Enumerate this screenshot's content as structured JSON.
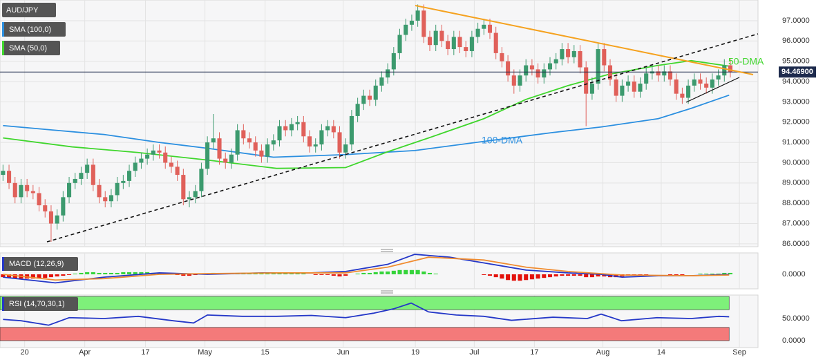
{
  "chart_data": [
    {
      "type": "candlestick",
      "title": "AUD/JPY",
      "up_color": "#3c9a6e",
      "down_color": "#e0605a",
      "open": [
        89.4,
        89.6,
        89.0,
        88.3,
        88.9,
        88.6,
        88.5,
        87.9,
        87.6,
        87.0,
        87.4,
        88.3,
        89.0,
        89.2,
        89.5,
        89.9,
        88.9,
        88.3,
        88.1,
        88.4,
        89.0,
        89.1,
        89.6,
        90.0,
        90.2,
        90.4,
        90.6,
        90.5,
        90.0,
        89.8,
        89.4,
        88.2,
        88.3,
        88.6,
        89.7,
        91.0,
        91.2,
        90.2,
        90.0,
        90.4,
        91.6,
        91.2,
        91.0,
        90.6,
        90.3,
        90.9,
        91.1,
        91.8,
        91.6,
        91.9,
        92.0,
        91.3,
        90.8,
        90.9,
        91.6,
        91.8,
        91.5,
        90.5,
        90.9,
        92.3,
        92.9,
        93.3,
        93.1,
        93.8,
        94.2,
        94.6,
        95.4,
        96.3,
        96.8,
        97.0,
        97.5,
        96.2,
        95.8,
        96.5,
        96.0,
        95.6,
        96.2,
        95.7,
        95.5,
        96.2,
        96.6,
        96.8,
        96.4,
        95.4,
        95.0,
        94.3,
        93.8,
        94.3,
        94.8,
        94.6,
        94.2,
        94.6,
        94.9,
        95.1,
        95.6,
        95.2,
        95.5,
        94.7,
        93.4,
        93.9,
        95.6,
        94.8,
        94.1,
        93.3,
        93.8,
        94.0,
        93.5,
        93.9,
        94.4,
        94.5,
        94.3,
        94.5,
        94.1,
        93.4,
        93.2,
        93.8,
        94.1,
        93.9,
        93.7,
        94.1,
        94.3,
        94.8
      ],
      "high": [
        89.9,
        89.9,
        89.3,
        89.2,
        89.2,
        88.9,
        88.8,
        88.2,
        87.9,
        87.7,
        88.6,
        89.3,
        89.5,
        89.8,
        90.2,
        90.2,
        89.2,
        88.6,
        88.7,
        89.3,
        89.4,
        89.9,
        90.3,
        90.5,
        90.7,
        90.9,
        90.9,
        90.8,
        90.3,
        90.1,
        89.7,
        88.6,
        88.9,
        90.0,
        91.3,
        92.4,
        91.5,
        90.5,
        90.7,
        91.9,
        91.9,
        91.5,
        91.3,
        90.9,
        91.2,
        91.4,
        92.1,
        92.1,
        92.2,
        92.3,
        92.3,
        91.6,
        91.2,
        91.9,
        92.1,
        92.1,
        91.8,
        91.2,
        92.6,
        93.2,
        93.6,
        93.6,
        94.1,
        94.5,
        94.9,
        95.7,
        96.6,
        97.1,
        97.3,
        97.8,
        97.8,
        96.5,
        96.8,
        96.8,
        96.3,
        96.5,
        96.5,
        96.0,
        96.5,
        96.9,
        97.1,
        97.1,
        96.7,
        95.7,
        95.3,
        94.6,
        94.6,
        95.1,
        95.1,
        94.9,
        94.9,
        95.2,
        95.4,
        95.9,
        95.9,
        95.8,
        95.8,
        95.0,
        94.2,
        95.9,
        95.9,
        95.1,
        94.4,
        94.1,
        94.3,
        94.3,
        94.2,
        94.7,
        94.8,
        94.8,
        94.8,
        94.8,
        94.4,
        93.7,
        94.1,
        94.4,
        94.4,
        94.2,
        94.4,
        94.6,
        95.1,
        95.1
      ],
      "low": [
        89.1,
        88.7,
        88.0,
        88.0,
        88.3,
        88.2,
        87.6,
        87.3,
        86.1,
        86.7,
        87.1,
        88.0,
        88.7,
        88.9,
        89.2,
        88.6,
        88.0,
        87.8,
        87.8,
        88.1,
        88.7,
        88.8,
        89.3,
        89.7,
        89.9,
        90.1,
        90.2,
        89.7,
        89.5,
        89.1,
        87.9,
        87.8,
        88.0,
        88.3,
        89.4,
        90.7,
        89.9,
        89.7,
        89.7,
        90.1,
        90.9,
        90.7,
        90.3,
        90.0,
        90.0,
        90.6,
        90.8,
        91.3,
        91.3,
        91.6,
        91.0,
        90.5,
        90.5,
        90.6,
        91.3,
        91.2,
        90.2,
        90.2,
        90.6,
        92.0,
        92.6,
        92.8,
        92.8,
        93.5,
        93.9,
        94.3,
        95.1,
        96.0,
        96.5,
        96.7,
        95.9,
        95.5,
        95.5,
        95.7,
        95.3,
        95.3,
        95.4,
        95.2,
        95.2,
        95.9,
        96.3,
        96.1,
        95.1,
        94.7,
        94.0,
        93.4,
        93.5,
        94.0,
        94.3,
        93.9,
        93.9,
        94.3,
        94.6,
        94.8,
        94.9,
        94.9,
        94.4,
        91.8,
        93.1,
        93.6,
        94.5,
        93.8,
        93.0,
        93.0,
        93.5,
        93.2,
        93.2,
        93.6,
        94.1,
        94.0,
        94.0,
        93.8,
        93.1,
        92.9,
        92.9,
        93.5,
        93.6,
        93.4,
        93.4,
        93.8,
        94.0,
        94.2
      ],
      "close": [
        89.6,
        89.0,
        88.3,
        88.9,
        88.6,
        88.5,
        87.9,
        87.6,
        87.0,
        87.4,
        88.3,
        89.0,
        89.2,
        89.5,
        89.9,
        88.9,
        88.3,
        88.1,
        88.4,
        89.0,
        89.1,
        89.6,
        90.0,
        90.2,
        90.4,
        90.6,
        90.5,
        90.0,
        89.8,
        89.4,
        88.2,
        88.3,
        88.6,
        89.7,
        91.0,
        91.2,
        90.2,
        90.0,
        90.4,
        91.6,
        91.2,
        91.0,
        90.6,
        90.3,
        90.9,
        91.1,
        91.8,
        91.6,
        91.9,
        92.0,
        91.3,
        90.8,
        90.9,
        91.6,
        91.8,
        91.5,
        90.5,
        90.9,
        92.3,
        92.9,
        93.3,
        93.1,
        93.8,
        94.2,
        94.6,
        95.4,
        96.3,
        96.8,
        97.0,
        97.5,
        96.2,
        95.8,
        96.5,
        96.0,
        95.6,
        96.2,
        95.7,
        95.5,
        96.2,
        96.6,
        96.8,
        96.4,
        95.4,
        95.0,
        94.3,
        93.8,
        94.3,
        94.8,
        94.6,
        94.2,
        94.6,
        94.9,
        95.1,
        95.6,
        95.2,
        95.5,
        94.7,
        93.4,
        93.9,
        95.6,
        94.8,
        94.1,
        93.3,
        93.8,
        94.0,
        93.5,
        93.9,
        94.4,
        94.5,
        94.3,
        94.5,
        94.1,
        93.4,
        93.2,
        93.8,
        94.1,
        93.9,
        93.7,
        94.1,
        94.3,
        94.8,
        94.469
      ],
      "price_line": 94.469,
      "price_label": "94.46900",
      "price_color": "#1e2b4d",
      "overlays": [
        {
          "name": "SMA (100,0)",
          "label": "100-DMA",
          "color": "#2b8fe0",
          "x": [
            0,
            8.7,
            16.8,
            26,
            34,
            45,
            57,
            68.5,
            80,
            91.5,
            99.5,
            109,
            114.5,
            120.8
          ],
          "values": [
            91.83,
            91.6,
            91.39,
            91.0,
            90.71,
            90.27,
            90.4,
            90.6,
            91.05,
            91.49,
            91.76,
            92.17,
            92.68,
            93.33
          ]
        },
        {
          "name": "SMA (50,0)",
          "label": "50-DMA",
          "color": "#3fd62c",
          "x": [
            0,
            11.5,
            22.5,
            34,
            45.5,
            57,
            64,
            70.8,
            80,
            87,
            94,
            100.7,
            108.8,
            114.5,
            120.8
          ],
          "values": [
            91.22,
            90.78,
            90.5,
            90.13,
            89.72,
            89.76,
            90.54,
            91.22,
            92.17,
            93.12,
            93.8,
            94.35,
            94.79,
            95.03,
            94.76
          ]
        }
      ],
      "xlim": [
        -0.5,
        125.6
      ],
      "ylim": [
        85.86,
        98.02
      ],
      "grid": true,
      "yticks": [
        {
          "value": 97,
          "label": "97.0000"
        },
        {
          "value": 96,
          "label": "96.0000"
        },
        {
          "value": 95,
          "label": "95.0000"
        },
        {
          "value": 94,
          "label": "94.0000"
        },
        {
          "value": 93,
          "label": "93.0000"
        },
        {
          "value": 92,
          "label": "92.0000"
        },
        {
          "value": 91,
          "label": "91.0000"
        },
        {
          "value": 90,
          "label": "90.0000"
        },
        {
          "value": 89,
          "label": "89.0000"
        },
        {
          "value": 88,
          "label": "88.0000"
        },
        {
          "value": 87,
          "label": "87.0000"
        },
        {
          "value": 86,
          "label": "86.0000"
        }
      ],
      "xticks": [
        {
          "value": 3.6,
          "label": "20"
        },
        {
          "value": 13.6,
          "label": "Apr"
        },
        {
          "value": 23.7,
          "label": "17"
        },
        {
          "value": 33.6,
          "label": "May"
        },
        {
          "value": 43.6,
          "label": "15"
        },
        {
          "value": 56.6,
          "label": "Jun"
        },
        {
          "value": 68.6,
          "label": "19"
        },
        {
          "value": 78.4,
          "label": "Jul"
        },
        {
          "value": 88.4,
          "label": "17"
        },
        {
          "value": 99.8,
          "label": "Aug"
        },
        {
          "value": 109.5,
          "label": "14"
        },
        {
          "value": 122.5,
          "label": "Sep"
        }
      ]
    },
    {
      "type": "macd",
      "title": "MACD (12,26,9)",
      "histogram": [
        -0.2,
        -0.25,
        -0.3,
        -0.3,
        -0.3,
        -0.3,
        -0.3,
        -0.25,
        -0.2,
        -0.15,
        -0.1,
        -0.05,
        0.05,
        0.1,
        0.15,
        0.15,
        0.1,
        0.1,
        0.1,
        0.1,
        0.15,
        0.15,
        0.15,
        0.15,
        0.15,
        0.1,
        0.1,
        0.05,
        0.0,
        -0.05,
        -0.1,
        -0.1,
        -0.05,
        0.0,
        0.05,
        0.1,
        0.05,
        0.05,
        0.05,
        0.1,
        0.1,
        0.05,
        0.05,
        0.05,
        0.05,
        0.05,
        0.1,
        0.1,
        0.1,
        0.1,
        0.05,
        0.0,
        -0.05,
        -0.05,
        -0.05,
        -0.1,
        -0.15,
        -0.1,
        0.0,
        0.05,
        0.1,
        0.1,
        0.15,
        0.2,
        0.2,
        0.25,
        0.3,
        0.3,
        0.3,
        0.3,
        0.2,
        0.1,
        0.05,
        0.0,
        0.0,
        0.0,
        0.0,
        0.0,
        0.0,
        0.0,
        -0.05,
        -0.1,
        -0.2,
        -0.3,
        -0.4,
        -0.45,
        -0.45,
        -0.4,
        -0.35,
        -0.3,
        -0.25,
        -0.2,
        -0.15,
        -0.1,
        -0.1,
        -0.1,
        -0.1,
        -0.2,
        -0.2,
        -0.15,
        -0.15,
        -0.2,
        -0.2,
        -0.15,
        -0.1,
        -0.1,
        -0.05,
        -0.05,
        0.0,
        0.0,
        0.0,
        -0.05,
        -0.05,
        -0.05,
        0.0,
        0.0,
        0.05,
        0.05,
        0.05,
        0.05,
        0.1,
        0.1
      ],
      "up_color": "#35d43a",
      "down_color": "#e3120b",
      "series": [
        {
          "color": "#2437c8",
          "x": [
            0,
            8.7,
            16.8,
            26,
            34,
            43.2,
            51.3,
            57,
            64,
            68.5,
            74.3,
            80,
            87,
            94,
            99.5,
            103,
            109,
            114.5,
            120.8
          ],
          "values": [
            -0.2,
            -0.6,
            -0.2,
            0.1,
            0.0,
            0.1,
            0.1,
            0.2,
            0.7,
            1.4,
            1.2,
            0.8,
            0.3,
            0.1,
            0.0,
            -0.2,
            -0.1,
            -0.1,
            0.0
          ]
        },
        {
          "color": "#f08c30",
          "x": [
            0,
            8.7,
            16.8,
            26,
            34,
            45.5,
            57,
            64,
            70.8,
            80,
            87,
            94,
            103,
            114.5,
            120.8
          ],
          "values": [
            0.0,
            -0.4,
            -0.3,
            0.0,
            0.05,
            0.1,
            0.1,
            0.5,
            1.2,
            1.0,
            0.5,
            0.2,
            -0.05,
            -0.1,
            -0.05
          ]
        }
      ],
      "ylim": [
        -1.5,
        1.5
      ],
      "yticks": [
        {
          "value": 0,
          "label": "0.0000"
        }
      ]
    },
    {
      "type": "rsi",
      "title": "RSI (14,70,30,1)",
      "upper": 70,
      "lower": 30,
      "upper_color": "#7ef07a",
      "lower_color": "#f47a7a",
      "series": [
        {
          "color": "#2437c8",
          "x": [
            0,
            3,
            7.6,
            11,
            16.8,
            22.5,
            28.3,
            31.7,
            34,
            39.8,
            45.5,
            51.3,
            57,
            61.6,
            65,
            67.9,
            70.8,
            75.4,
            80,
            84.6,
            91.5,
            97.2,
            99.5,
            102.9,
            108.8,
            114.5,
            119.1,
            120.8
          ],
          "values": [
            48,
            45,
            35,
            52,
            50,
            55,
            45,
            40,
            58,
            55,
            55,
            57,
            52,
            62,
            72,
            85,
            65,
            58,
            55,
            46,
            53,
            50,
            60,
            45,
            52,
            50,
            55,
            54
          ]
        }
      ],
      "ylim": [
        0,
        100
      ],
      "yticks": [
        {
          "value": 50,
          "label": "50.0000"
        },
        {
          "value": 0,
          "label": "0.0000"
        }
      ]
    }
  ]
}
